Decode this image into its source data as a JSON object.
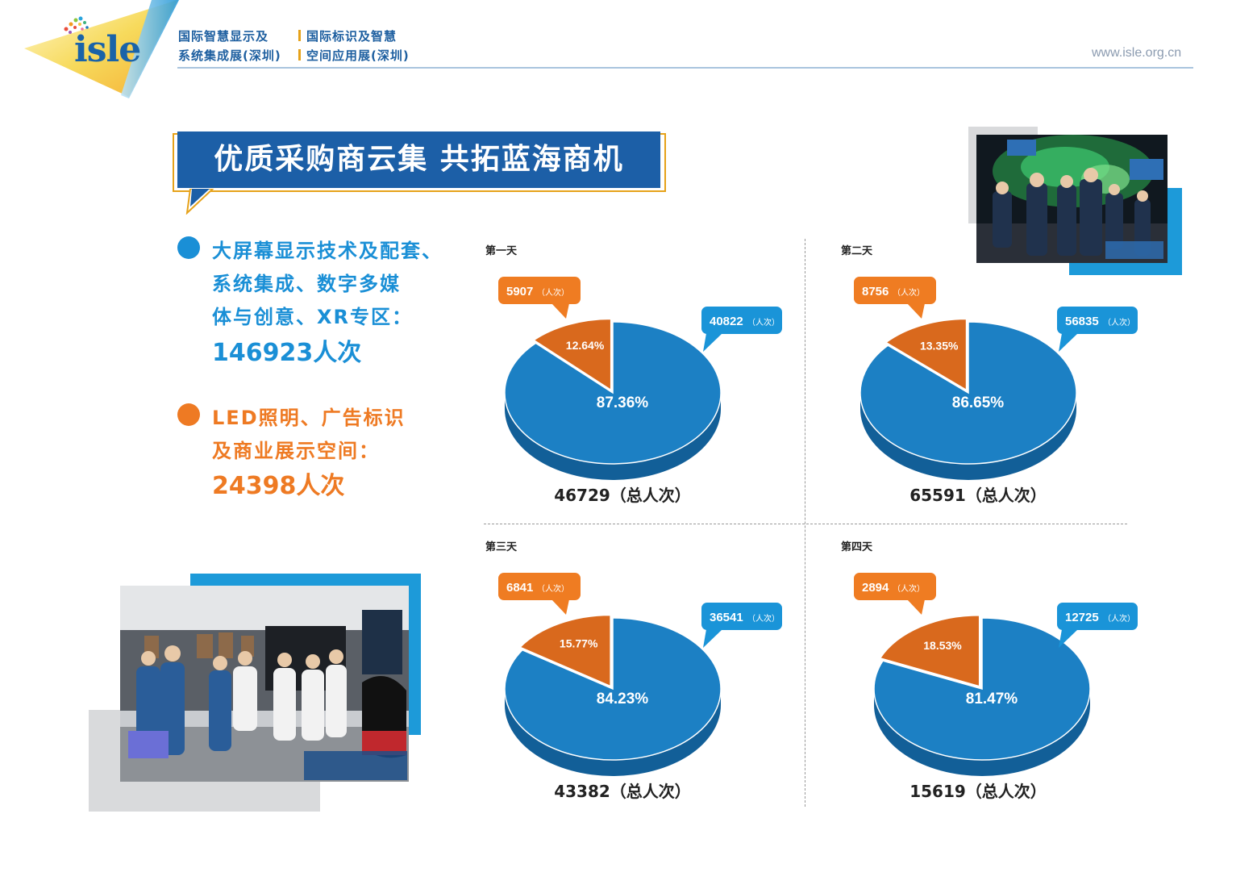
{
  "header": {
    "logo": "isle",
    "line1_a": "国际智慧显示及",
    "line1_b": "国际标识及智慧",
    "line2_a": "系统集成展(深圳)",
    "line2_b": "空间应用展(深圳)",
    "url": "www.isle.org.cn"
  },
  "banner": {
    "title": "优质采购商云集 共拓蓝海商机"
  },
  "legend": {
    "blue": {
      "lines": [
        "大屏幕显示技术及配套、",
        "系统集成、数字多媒",
        "体与创意、XR专区："
      ],
      "total": "146923人次",
      "color": "#1a8fd6"
    },
    "orange": {
      "lines": [
        "LED照明、广告标识",
        "及商业展示空间："
      ],
      "total": "24398人次",
      "color": "#ee7a23"
    }
  },
  "colors": {
    "blue_text": "#1a8fd6",
    "orange_text": "#ee7a23",
    "pie_blue": "#1c80c4",
    "pie_orange": "#d9691d",
    "callout_blue": "#1a94d8",
    "callout_orange": "#ef7c22"
  },
  "callout_unit": "（人次）",
  "chart_data": [
    {
      "type": "pie",
      "title": "第一天",
      "slices": [
        {
          "name": "blue",
          "value": 40822,
          "percent": "87.36%"
        },
        {
          "name": "orange",
          "value": 5907,
          "percent": "12.64%"
        }
      ],
      "blue_value": "40822",
      "orange_value": "5907",
      "blue_pct_label": "87.36%",
      "orange_pct_label": "12.64%",
      "orange_fraction": 0.1264,
      "total_label": "46729（总人次）"
    },
    {
      "type": "pie",
      "title": "第二天",
      "slices": [
        {
          "name": "blue",
          "value": 56835,
          "percent": "86.65%"
        },
        {
          "name": "orange",
          "value": 8756,
          "percent": "13.35%"
        }
      ],
      "blue_value": "56835",
      "orange_value": "8756",
      "blue_pct_label": "86.65%",
      "orange_pct_label": "13.35%",
      "orange_fraction": 0.1335,
      "total_label": "65591（总人次）"
    },
    {
      "type": "pie",
      "title": "第三天",
      "slices": [
        {
          "name": "blue",
          "value": 36541,
          "percent": "84.23%"
        },
        {
          "name": "orange",
          "value": 6841,
          "percent": "15.77%"
        }
      ],
      "blue_value": "36541",
      "orange_value": "6841",
      "blue_pct_label": "84.23%",
      "orange_pct_label": "15.77%",
      "orange_fraction": 0.1577,
      "total_label": "43382（总人次）"
    },
    {
      "type": "pie",
      "title": "第四天",
      "slices": [
        {
          "name": "blue",
          "value": 12725,
          "percent": "81.47%"
        },
        {
          "name": "orange",
          "value": 2894,
          "percent": "18.53%"
        }
      ],
      "blue_value": "12725",
      "orange_value": "2894",
      "blue_pct_label": "81.47%",
      "orange_pct_label": "18.53%",
      "orange_fraction": 0.1853,
      "total_label": "15619（总人次）"
    }
  ]
}
